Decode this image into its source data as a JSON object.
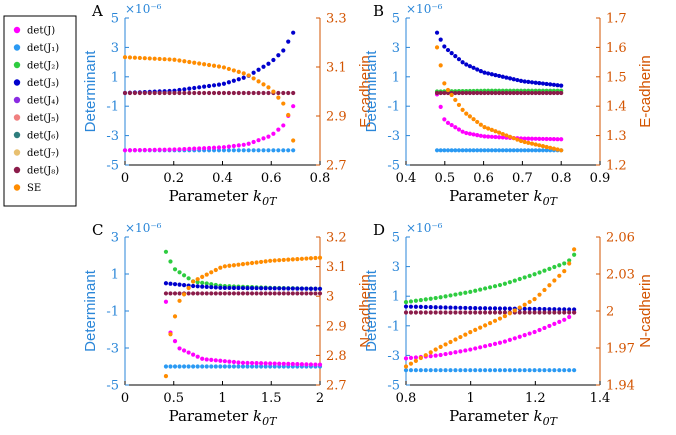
{
  "legend": {
    "entries": [
      {
        "label": "det(J)",
        "color": "#ff00ff"
      },
      {
        "label": "det(J₁)",
        "color": "#2b9af3"
      },
      {
        "label": "det(J₂)",
        "color": "#2ecc40"
      },
      {
        "label": "det(J₃)",
        "color": "#0000cd"
      },
      {
        "label": "det(J₄)",
        "color": "#8a2be2"
      },
      {
        "label": "det(J₅)",
        "color": "#f08080"
      },
      {
        "label": "det(J₆)",
        "color": "#2e7d7d"
      },
      {
        "label": "det(J₇)",
        "color": "#e8c070"
      },
      {
        "label": "det(J₈)",
        "color": "#8b1c4a"
      },
      {
        "label": "SE",
        "color": "#ff8c00"
      }
    ]
  },
  "chart_data": [
    {
      "type": "scatter",
      "panel": "A",
      "xlabel": "Parameter",
      "xlabel_sym": "k",
      "xlabel_sub": "0T",
      "ylabel_left": "Determinant",
      "ylabel_right": "E-cadherin",
      "exponent": "×10⁻⁶",
      "xlim": [
        0,
        0.8
      ],
      "xticks": [
        "0",
        "0.2",
        "0.4",
        "0.6",
        "0.8"
      ],
      "ylim_left": [
        -5,
        5
      ],
      "yticks_left": [
        "-5",
        "-3",
        "-1",
        "1",
        "3",
        "5"
      ],
      "ylim_right": [
        2.7,
        3.3
      ],
      "yticks_right": [
        "2.7",
        "2.9",
        "3.1",
        "3.3"
      ],
      "x_range": [
        0,
        0.69
      ],
      "series": [
        {
          "name": "det(J₁)",
          "color": "#2b9af3",
          "values": [
            [
              0,
              -4
            ],
            [
              0.69,
              -4
            ]
          ]
        },
        {
          "name": "det(J)",
          "color": "#ff00ff",
          "values": [
            [
              0,
              -4
            ],
            [
              0.2,
              -3.95
            ],
            [
              0.4,
              -3.8
            ],
            [
              0.5,
              -3.6
            ],
            [
              0.6,
              -3.0
            ],
            [
              0.65,
              -2.3
            ],
            [
              0.69,
              -1.0
            ],
            [
              0.695,
              -0.1
            ]
          ]
        },
        {
          "name": "det(J₃)",
          "color": "#0000cd",
          "values": [
            [
              0,
              -0.1
            ],
            [
              0.2,
              0.05
            ],
            [
              0.4,
              0.5
            ],
            [
              0.5,
              1.0
            ],
            [
              0.6,
              2.0
            ],
            [
              0.65,
              2.8
            ],
            [
              0.69,
              4.0
            ]
          ]
        },
        {
          "name": "det(J₈)",
          "color": "#8b1c4a",
          "values": [
            [
              0,
              -0.1
            ],
            [
              0.69,
              -0.1
            ]
          ]
        },
        {
          "name": "SE",
          "color": "#ff8c00",
          "axis": "right",
          "values": [
            [
              0,
              3.14
            ],
            [
              0.2,
              3.13
            ],
            [
              0.4,
              3.1
            ],
            [
              0.5,
              3.07
            ],
            [
              0.6,
              3.01
            ],
            [
              0.65,
              2.95
            ],
            [
              0.68,
              2.88
            ],
            [
              0.69,
              2.8
            ]
          ]
        }
      ]
    },
    {
      "type": "scatter",
      "panel": "B",
      "xlabel": "Parameter",
      "xlabel_sym": "k",
      "xlabel_sub": "0T",
      "ylabel_left": "Determinant",
      "ylabel_right": "E-cadherin",
      "exponent": "×10⁻⁶",
      "xlim": [
        0.4,
        0.9
      ],
      "xticks": [
        "0.4",
        "0.5",
        "0.6",
        "0.7",
        "0.8",
        "0.9"
      ],
      "ylim_left": [
        -5,
        5
      ],
      "yticks_left": [
        "-5",
        "-3",
        "-1",
        "1",
        "3",
        "5"
      ],
      "ylim_right": [
        1.2,
        1.7
      ],
      "yticks_right": [
        "1.2",
        "1.3",
        "1.4",
        "1.5",
        "1.6",
        "1.7"
      ],
      "x_range": [
        0.48,
        0.8
      ],
      "series": [
        {
          "name": "det(J₁)",
          "color": "#2b9af3",
          "values": [
            [
              0.48,
              -4
            ],
            [
              0.8,
              -4
            ]
          ]
        },
        {
          "name": "det(J)",
          "color": "#ff00ff",
          "values": [
            [
              0.48,
              -0.2
            ],
            [
              0.5,
              -2.0
            ],
            [
              0.55,
              -2.8
            ],
            [
              0.6,
              -3.05
            ],
            [
              0.7,
              -3.2
            ],
            [
              0.8,
              -3.25
            ]
          ]
        },
        {
          "name": "det(J₃)",
          "color": "#0000cd",
          "values": [
            [
              0.48,
              4.0
            ],
            [
              0.5,
              3.0
            ],
            [
              0.55,
              1.9
            ],
            [
              0.6,
              1.3
            ],
            [
              0.7,
              0.7
            ],
            [
              0.8,
              0.4
            ]
          ]
        },
        {
          "name": "det(J₂)",
          "color": "#2ecc40",
          "values": [
            [
              0.48,
              0.0
            ],
            [
              0.6,
              0.05
            ],
            [
              0.8,
              0.05
            ]
          ]
        },
        {
          "name": "det(J₈)",
          "color": "#8b1c4a",
          "values": [
            [
              0.48,
              -0.1
            ],
            [
              0.8,
              -0.1
            ]
          ]
        },
        {
          "name": "SE",
          "color": "#ff8c00",
          "axis": "right",
          "values": [
            [
              0.48,
              1.6
            ],
            [
              0.5,
              1.47
            ],
            [
              0.55,
              1.38
            ],
            [
              0.6,
              1.33
            ],
            [
              0.7,
              1.28
            ],
            [
              0.8,
              1.25
            ]
          ]
        }
      ]
    },
    {
      "type": "scatter",
      "panel": "C",
      "xlabel": "Parameter",
      "xlabel_sym": "k",
      "xlabel_sub": "0T",
      "ylabel_left": "Determinant",
      "ylabel_right": "N-cadherin",
      "exponent": "×10⁻⁶",
      "xlim": [
        0,
        2
      ],
      "xticks": [
        "0",
        "0.5",
        "1",
        "1.5",
        "2"
      ],
      "ylim_left": [
        -5,
        3
      ],
      "yticks_left": [
        "-5",
        "-3",
        "-1",
        "1",
        "3"
      ],
      "ylim_right": [
        2.7,
        3.2
      ],
      "yticks_right": [
        "2.7",
        "2.8",
        "2.9",
        "3",
        "3.1",
        "3.2"
      ],
      "x_range": [
        0.42,
        2
      ],
      "series": [
        {
          "name": "det(J₁)",
          "color": "#2b9af3",
          "values": [
            [
              0.42,
              -4
            ],
            [
              2,
              -4
            ]
          ]
        },
        {
          "name": "det(J)",
          "color": "#ff00ff",
          "values": [
            [
              0.42,
              -0.5
            ],
            [
              0.45,
              -2.0
            ],
            [
              0.55,
              -3.0
            ],
            [
              0.8,
              -3.6
            ],
            [
              1.2,
              -3.8
            ],
            [
              2,
              -3.9
            ]
          ]
        },
        {
          "name": "det(J₂)",
          "color": "#2ecc40",
          "values": [
            [
              0.42,
              2.2
            ],
            [
              0.5,
              1.3
            ],
            [
              0.7,
              0.6
            ],
            [
              1.0,
              0.35
            ],
            [
              1.5,
              0.25
            ],
            [
              2,
              0.2
            ]
          ]
        },
        {
          "name": "det(J₃)",
          "color": "#0000cd",
          "values": [
            [
              0.42,
              0.5
            ],
            [
              0.7,
              0.35
            ],
            [
              1.0,
              0.25
            ],
            [
              2,
              0.2
            ]
          ]
        },
        {
          "name": "det(J₈)",
          "color": "#8b1c4a",
          "values": [
            [
              0.42,
              -0.05
            ],
            [
              2,
              -0.05
            ]
          ]
        },
        {
          "name": "SE",
          "color": "#ff8c00",
          "axis": "right",
          "values": [
            [
              0.42,
              2.73
            ],
            [
              0.45,
              2.85
            ],
            [
              0.55,
              2.98
            ],
            [
              0.7,
              3.05
            ],
            [
              1.0,
              3.1
            ],
            [
              1.5,
              3.12
            ],
            [
              2,
              3.13
            ]
          ]
        }
      ]
    },
    {
      "type": "scatter",
      "panel": "D",
      "xlabel": "Parameter",
      "xlabel_sym": "k",
      "xlabel_sub": "0T",
      "ylabel_left": "Determinant",
      "ylabel_right": "N-cadherin",
      "exponent": "×10⁻⁶",
      "xlim": [
        0.8,
        1.4
      ],
      "xticks": [
        "0.8",
        "1",
        "1.2",
        "1.4"
      ],
      "ylim_left": [
        -5,
        5
      ],
      "yticks_left": [
        "-5",
        "-3",
        "-1",
        "1",
        "3",
        "5"
      ],
      "ylim_right": [
        1.94,
        2.06
      ],
      "yticks_right": [
        "1.94",
        "1.97",
        "2",
        "2.03",
        "2.06"
      ],
      "x_range": [
        0.8,
        1.32
      ],
      "series": [
        {
          "name": "det(J₁)",
          "color": "#2b9af3",
          "values": [
            [
              0.8,
              -4
            ],
            [
              1.32,
              -4
            ]
          ]
        },
        {
          "name": "det(J)",
          "color": "#ff00ff",
          "values": [
            [
              0.8,
              -3.2
            ],
            [
              0.9,
              -3.0
            ],
            [
              1.0,
              -2.6
            ],
            [
              1.1,
              -2.1
            ],
            [
              1.2,
              -1.4
            ],
            [
              1.3,
              -0.5
            ],
            [
              1.32,
              -0.1
            ]
          ]
        },
        {
          "name": "det(J₂)",
          "color": "#2ecc40",
          "values": [
            [
              0.8,
              0.6
            ],
            [
              0.9,
              0.9
            ],
            [
              1.0,
              1.3
            ],
            [
              1.1,
              1.8
            ],
            [
              1.2,
              2.5
            ],
            [
              1.3,
              3.3
            ],
            [
              1.32,
              3.8
            ]
          ]
        },
        {
          "name": "det(J₃)",
          "color": "#0000cd",
          "values": [
            [
              0.8,
              0.3
            ],
            [
              1.0,
              0.2
            ],
            [
              1.32,
              0.1
            ]
          ]
        },
        {
          "name": "det(J₈)",
          "color": "#8b1c4a",
          "values": [
            [
              0.8,
              -0.1
            ],
            [
              1.32,
              -0.1
            ]
          ]
        },
        {
          "name": "SE",
          "color": "#ff8c00",
          "axis": "right",
          "values": [
            [
              0.8,
              1.955
            ],
            [
              0.9,
              1.97
            ],
            [
              1.0,
              1.983
            ],
            [
              1.1,
              1.995
            ],
            [
              1.2,
              2.01
            ],
            [
              1.3,
              2.035
            ],
            [
              1.32,
              2.05
            ]
          ]
        }
      ]
    }
  ]
}
